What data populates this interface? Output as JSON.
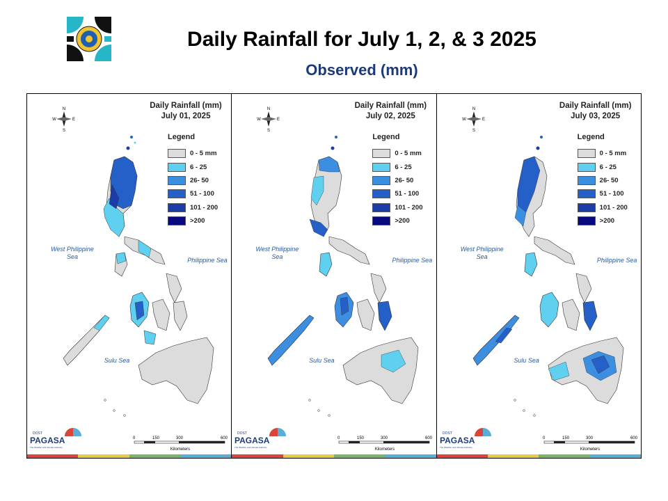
{
  "header": {
    "title": "Daily Rainfall for July 1, 2, & 3 2025",
    "subtitle": "Observed (mm)"
  },
  "legend": {
    "title": "Legend",
    "items": [
      {
        "label": "0 - 5 mm",
        "color": "#dcdcdc"
      },
      {
        "label": "6 - 25",
        "color": "#5fd0f0"
      },
      {
        "label": "26- 50",
        "color": "#3c8fe0"
      },
      {
        "label": "51 - 100",
        "color": "#2460c8"
      },
      {
        "label": "101 - 200",
        "color": "#1c3ca8"
      },
      {
        "label": ">200",
        "color": "#0a0a80"
      }
    ]
  },
  "map_labels": {
    "west_sea": "West Philippine Sea",
    "phil_sea": "Philippine Sea",
    "sulu_sea": "Sulu Sea",
    "compass_n": "N",
    "compass_s": "S",
    "compass_e": "E",
    "compass_w": "W",
    "pagasa_dost": "DOST",
    "pagasa_name": "PAGASA",
    "pagasa_tagline": "The Weather and Climate Authority",
    "scale_ticks": [
      "0",
      "150",
      "300",
      "600"
    ],
    "scale_unit": "Kilometers"
  },
  "panels": [
    {
      "heading": "Daily Rainfall (mm)",
      "date": "July 01, 2025"
    },
    {
      "heading": "Daily Rainfall (mm)",
      "date": "July 02, 2025"
    },
    {
      "heading": "Daily Rainfall (mm)",
      "date": "July 03, 2025"
    }
  ],
  "stripe_colors": [
    "#d9453a",
    "#e8c94a",
    "#7ab56a",
    "#5aaed8"
  ],
  "logo_colors": {
    "teal": "#27b6c8",
    "black": "#111111",
    "yellow": "#f2c530",
    "blue": "#1f5fb0"
  }
}
